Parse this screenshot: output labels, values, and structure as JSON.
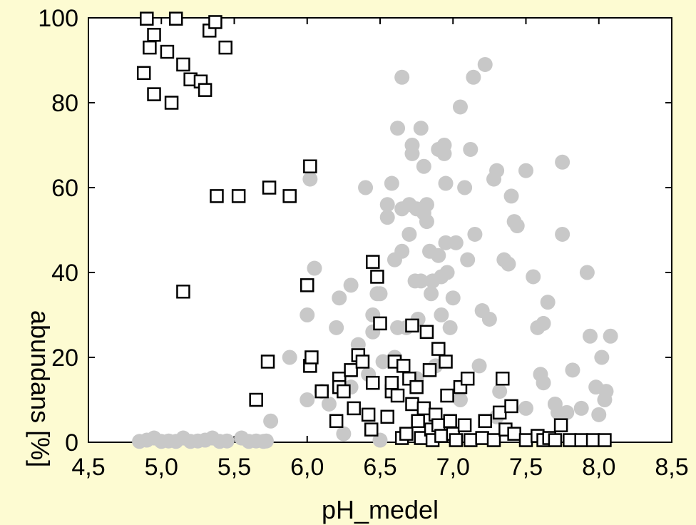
{
  "chart_data": {
    "type": "scatter",
    "title": "",
    "xlabel": "pH_medel",
    "ylabel": "abundans [%]",
    "xlim": [
      4.5,
      8.5
    ],
    "ylim": [
      0,
      100
    ],
    "xticks": [
      4.5,
      5.0,
      5.5,
      6.0,
      6.5,
      7.0,
      7.5,
      8.0,
      8.5
    ],
    "xtick_labels": [
      "4,5",
      "5,0",
      "5,5",
      "6,0",
      "6,5",
      "7,0",
      "7,5",
      "8,0",
      "8,5"
    ],
    "yticks": [
      0,
      20,
      40,
      60,
      80,
      100
    ],
    "ytick_labels": [
      "0",
      "20",
      "40",
      "60",
      "80",
      "100"
    ],
    "grid": false,
    "colors": {
      "background": "#fdfbd2",
      "plot_area": "#ffffff",
      "circle_fill": "#c8c8c8",
      "square_fill": "#ffffff",
      "square_stroke": "#000000"
    },
    "series": [
      {
        "marker": "circle",
        "points": [
          [
            4.85,
            0.2
          ],
          [
            4.9,
            0.5
          ],
          [
            4.95,
            1.0
          ],
          [
            5.0,
            0.2
          ],
          [
            5.05,
            0.3
          ],
          [
            5.1,
            0.2
          ],
          [
            5.15,
            1.0
          ],
          [
            5.2,
            0.2
          ],
          [
            5.25,
            0.3
          ],
          [
            5.3,
            0.5
          ],
          [
            5.35,
            1.0
          ],
          [
            5.4,
            0.2
          ],
          [
            5.45,
            0.3
          ],
          [
            5.55,
            1.0
          ],
          [
            5.6,
            0.2
          ],
          [
            5.65,
            0.3
          ],
          [
            5.7,
            0.2
          ],
          [
            5.72,
            0.3
          ],
          [
            5.75,
            5
          ],
          [
            5.88,
            20
          ],
          [
            6.0,
            10
          ],
          [
            6.0,
            30
          ],
          [
            6.02,
            62
          ],
          [
            6.05,
            41
          ],
          [
            6.1,
            12
          ],
          [
            6.15,
            9
          ],
          [
            6.2,
            27
          ],
          [
            6.22,
            34
          ],
          [
            6.25,
            2
          ],
          [
            6.3,
            37
          ],
          [
            6.3,
            13
          ],
          [
            6.35,
            23
          ],
          [
            6.4,
            60
          ],
          [
            6.42,
            16
          ],
          [
            6.45,
            26
          ],
          [
            6.48,
            35
          ],
          [
            6.5,
            35
          ],
          [
            6.5,
            0.5
          ],
          [
            6.52,
            19
          ],
          [
            6.55,
            53
          ],
          [
            6.55,
            56
          ],
          [
            6.58,
            61
          ],
          [
            6.6,
            43
          ],
          [
            6.62,
            74
          ],
          [
            6.62,
            27
          ],
          [
            6.65,
            86
          ],
          [
            6.65,
            45
          ],
          [
            6.65,
            55
          ],
          [
            6.68,
            27
          ],
          [
            6.7,
            56
          ],
          [
            6.7,
            49
          ],
          [
            6.72,
            70
          ],
          [
            6.72,
            68
          ],
          [
            6.74,
            38
          ],
          [
            6.75,
            55
          ],
          [
            6.76,
            29
          ],
          [
            6.78,
            74
          ],
          [
            6.78,
            38
          ],
          [
            6.8,
            65
          ],
          [
            6.8,
            54
          ],
          [
            6.82,
            56
          ],
          [
            6.82,
            52
          ],
          [
            6.84,
            45
          ],
          [
            6.85,
            35
          ],
          [
            6.86,
            38
          ],
          [
            6.9,
            69
          ],
          [
            6.9,
            44
          ],
          [
            6.92,
            39
          ],
          [
            6.92,
            30
          ],
          [
            6.94,
            70
          ],
          [
            6.94,
            68
          ],
          [
            6.95,
            61
          ],
          [
            6.95,
            47
          ],
          [
            6.96,
            40
          ],
          [
            6.98,
            27
          ],
          [
            7.0,
            34
          ],
          [
            7.02,
            47
          ],
          [
            7.05,
            79
          ],
          [
            7.08,
            60
          ],
          [
            7.1,
            43
          ],
          [
            7.12,
            69
          ],
          [
            7.14,
            86
          ],
          [
            7.15,
            49
          ],
          [
            7.18,
            18
          ],
          [
            7.2,
            31
          ],
          [
            7.22,
            89
          ],
          [
            7.25,
            29
          ],
          [
            7.28,
            62
          ],
          [
            7.3,
            64
          ],
          [
            7.32,
            12
          ],
          [
            7.35,
            43
          ],
          [
            7.38,
            42
          ],
          [
            7.4,
            58
          ],
          [
            7.42,
            52
          ],
          [
            7.44,
            51
          ],
          [
            7.5,
            64
          ],
          [
            7.55,
            39
          ],
          [
            7.58,
            27
          ],
          [
            7.6,
            16
          ],
          [
            7.62,
            28
          ],
          [
            7.65,
            33
          ],
          [
            7.7,
            9
          ],
          [
            7.72,
            7
          ],
          [
            7.75,
            66
          ],
          [
            7.75,
            49
          ],
          [
            7.78,
            7
          ],
          [
            7.82,
            17
          ],
          [
            7.88,
            8
          ],
          [
            7.92,
            40
          ],
          [
            7.94,
            25
          ],
          [
            7.98,
            13
          ],
          [
            8.0,
            6.5
          ],
          [
            8.02,
            20
          ],
          [
            8.04,
            10
          ],
          [
            8.05,
            12
          ],
          [
            8.08,
            25
          ],
          [
            7.5,
            8
          ],
          [
            7.62,
            14
          ],
          [
            6.88,
            18
          ],
          [
            6.6,
            20
          ],
          [
            7.3,
            6
          ],
          [
            7.05,
            10
          ],
          [
            6.75,
            15
          ],
          [
            6.45,
            30
          ]
        ]
      },
      {
        "marker": "square",
        "points": [
          [
            4.88,
            87
          ],
          [
            4.9,
            99.8
          ],
          [
            4.92,
            93
          ],
          [
            4.95,
            96
          ],
          [
            4.95,
            82
          ],
          [
            5.04,
            92
          ],
          [
            5.07,
            80
          ],
          [
            5.1,
            99.8
          ],
          [
            5.15,
            89
          ],
          [
            5.2,
            85.5
          ],
          [
            5.27,
            85
          ],
          [
            5.3,
            83
          ],
          [
            5.33,
            97
          ],
          [
            5.37,
            99
          ],
          [
            5.44,
            93
          ],
          [
            5.38,
            58
          ],
          [
            5.53,
            58
          ],
          [
            5.74,
            60
          ],
          [
            5.88,
            58
          ],
          [
            6.02,
            65
          ],
          [
            5.15,
            35.5
          ],
          [
            6.0,
            37
          ],
          [
            6.02,
            18
          ],
          [
            6.03,
            20
          ],
          [
            5.73,
            19
          ],
          [
            5.65,
            10
          ],
          [
            6.1,
            12
          ],
          [
            6.2,
            5
          ],
          [
            6.22,
            15
          ],
          [
            6.22,
            13
          ],
          [
            6.25,
            12
          ],
          [
            6.3,
            17
          ],
          [
            6.32,
            8
          ],
          [
            6.35,
            20.5
          ],
          [
            6.38,
            19
          ],
          [
            6.42,
            6.5
          ],
          [
            6.44,
            3
          ],
          [
            6.45,
            14
          ],
          [
            6.45,
            42.5
          ],
          [
            6.48,
            39
          ],
          [
            6.5,
            28
          ],
          [
            6.55,
            6
          ],
          [
            6.58,
            12
          ],
          [
            6.58,
            14
          ],
          [
            6.6,
            19
          ],
          [
            6.62,
            11
          ],
          [
            6.65,
            1
          ],
          [
            6.66,
            18
          ],
          [
            6.68,
            2
          ],
          [
            6.7,
            15
          ],
          [
            6.72,
            27.5
          ],
          [
            6.72,
            9
          ],
          [
            6.75,
            13
          ],
          [
            6.76,
            5
          ],
          [
            6.78,
            1
          ],
          [
            6.8,
            8
          ],
          [
            6.82,
            26
          ],
          [
            6.84,
            17
          ],
          [
            6.85,
            3
          ],
          [
            6.86,
            0.5
          ],
          [
            6.88,
            6.5
          ],
          [
            6.9,
            22
          ],
          [
            6.9,
            4
          ],
          [
            6.92,
            1.5
          ],
          [
            6.95,
            19
          ],
          [
            6.96,
            11
          ],
          [
            6.98,
            5
          ],
          [
            7.0,
            2
          ],
          [
            7.02,
            0.5
          ],
          [
            7.05,
            13
          ],
          [
            7.08,
            4
          ],
          [
            7.1,
            15
          ],
          [
            7.12,
            0.5
          ],
          [
            7.2,
            1
          ],
          [
            7.22,
            5
          ],
          [
            7.28,
            0.5
          ],
          [
            7.32,
            7
          ],
          [
            7.34,
            15
          ],
          [
            7.36,
            3
          ],
          [
            7.4,
            8.5
          ],
          [
            7.42,
            2
          ],
          [
            7.5,
            0.5
          ],
          [
            7.58,
            1.5
          ],
          [
            7.62,
            0.5
          ],
          [
            7.66,
            1
          ],
          [
            7.7,
            0.5
          ],
          [
            7.74,
            4
          ],
          [
            7.8,
            0.5
          ],
          [
            7.88,
            0.5
          ],
          [
            7.96,
            0.5
          ],
          [
            8.04,
            0.5
          ]
        ]
      }
    ]
  }
}
